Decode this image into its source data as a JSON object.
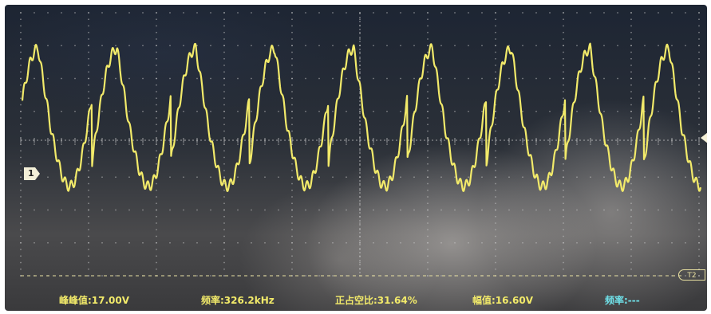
{
  "channel": {
    "marker_label": "1",
    "trigger_label": "T2",
    "trace_color": "#f2ea6a"
  },
  "measurements": [
    {
      "label": "峰峰值:17.00V"
    },
    {
      "label": "频率:326.2kHz"
    },
    {
      "label": "正占空比:31.64%"
    },
    {
      "label": "幅值:16.60V"
    },
    {
      "label": "频率:---"
    }
  ],
  "colors": {
    "trace": "#f2ea6a",
    "grid": "#c8c8c8",
    "measurement_text": "#f2ea6a",
    "secondary_measurement_text": "#6fe0e8"
  }
}
